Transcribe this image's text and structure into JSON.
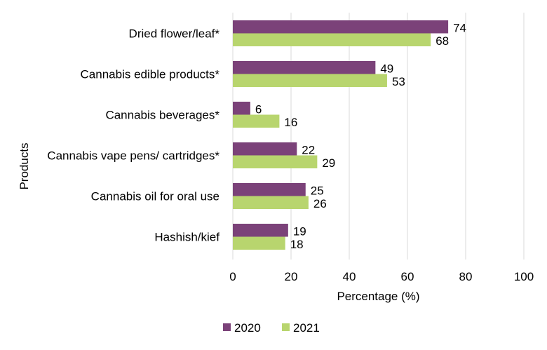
{
  "chart_data": {
    "type": "bar",
    "orientation": "horizontal",
    "title": "",
    "xlabel": "Percentage (%)",
    "ylabel": "Products",
    "xlim": [
      0,
      100
    ],
    "xticks": [
      0,
      20,
      40,
      60,
      80,
      100
    ],
    "grid": true,
    "legend_placement": "bottom",
    "categories": [
      "Dried flower/leaf*",
      "Cannabis edible products*",
      "Cannabis beverages*",
      "Cannabis vape pens/ cartridges*",
      "Cannabis oil for oral use",
      "Hashish/kief"
    ],
    "series": [
      {
        "name": "2020",
        "color": "#7B4279",
        "values": [
          74,
          49,
          6,
          22,
          25,
          19
        ]
      },
      {
        "name": "2021",
        "color": "#B8D56E",
        "values": [
          68,
          53,
          16,
          29,
          26,
          18
        ]
      }
    ]
  }
}
